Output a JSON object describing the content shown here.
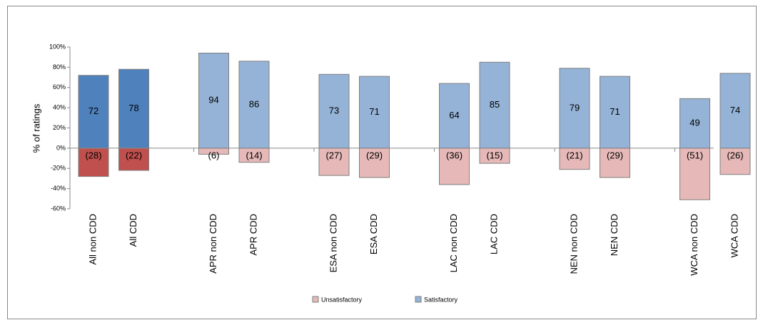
{
  "chart_data": {
    "type": "bar",
    "y_label": "% of ratings",
    "categories": [
      "All non CDD",
      "All CDD",
      "APR non CDD",
      "APR CDD",
      "ESA non CDD",
      "ESA CDD",
      "LAC non CDD",
      "LAC CDD",
      "NEN non CDD",
      "NEN CDD",
      "WCA non  CDD",
      "WCA CDD"
    ],
    "series": [
      {
        "name": "Unsatisfactory",
        "color": "#e6b9b8",
        "colors": [
          "#c0504d",
          "#c0504d",
          "#e6b9b8",
          "#e6b9b8",
          "#e6b9b8",
          "#e6b9b8",
          "#e6b9b8",
          "#e6b9b8",
          "#e6b9b8",
          "#e6b9b8",
          "#e6b9b8",
          "#e6b9b8"
        ],
        "values": [
          -28,
          -22,
          -6,
          -14,
          -27,
          -29,
          -36,
          -15,
          -21,
          -29,
          -51,
          -26
        ],
        "value_labels": [
          "(28)",
          "(22)",
          "(6)",
          "(14)",
          "(27)",
          "(29)",
          "(36)",
          "(15)",
          "(21)",
          "(29)",
          "(51)",
          "(26)"
        ]
      },
      {
        "name": "Satisfactory",
        "color": "#95b3d7",
        "colors": [
          "#4f81bd",
          "#4f81bd",
          "#95b3d7",
          "#95b3d7",
          "#95b3d7",
          "#95b3d7",
          "#95b3d7",
          "#95b3d7",
          "#95b3d7",
          "#95b3d7",
          "#95b3d7",
          "#95b3d7"
        ],
        "values": [
          72,
          78,
          94,
          86,
          73,
          71,
          64,
          85,
          79,
          71,
          49,
          74
        ]
      }
    ],
    "ylim": [
      -60,
      100
    ],
    "yticks": [
      {
        "value": -60,
        "label": "-60%"
      },
      {
        "value": -40,
        "label": "-40%"
      },
      {
        "value": -20,
        "label": "-20%"
      },
      {
        "value": 0,
        "label": "0%"
      },
      {
        "value": 20,
        "label": "20%"
      },
      {
        "value": 40,
        "label": "40%"
      },
      {
        "value": 60,
        "label": "60%"
      },
      {
        "value": 80,
        "label": "80%"
      },
      {
        "value": 100,
        "label": "100%"
      }
    ],
    "legend": "bottom"
  }
}
